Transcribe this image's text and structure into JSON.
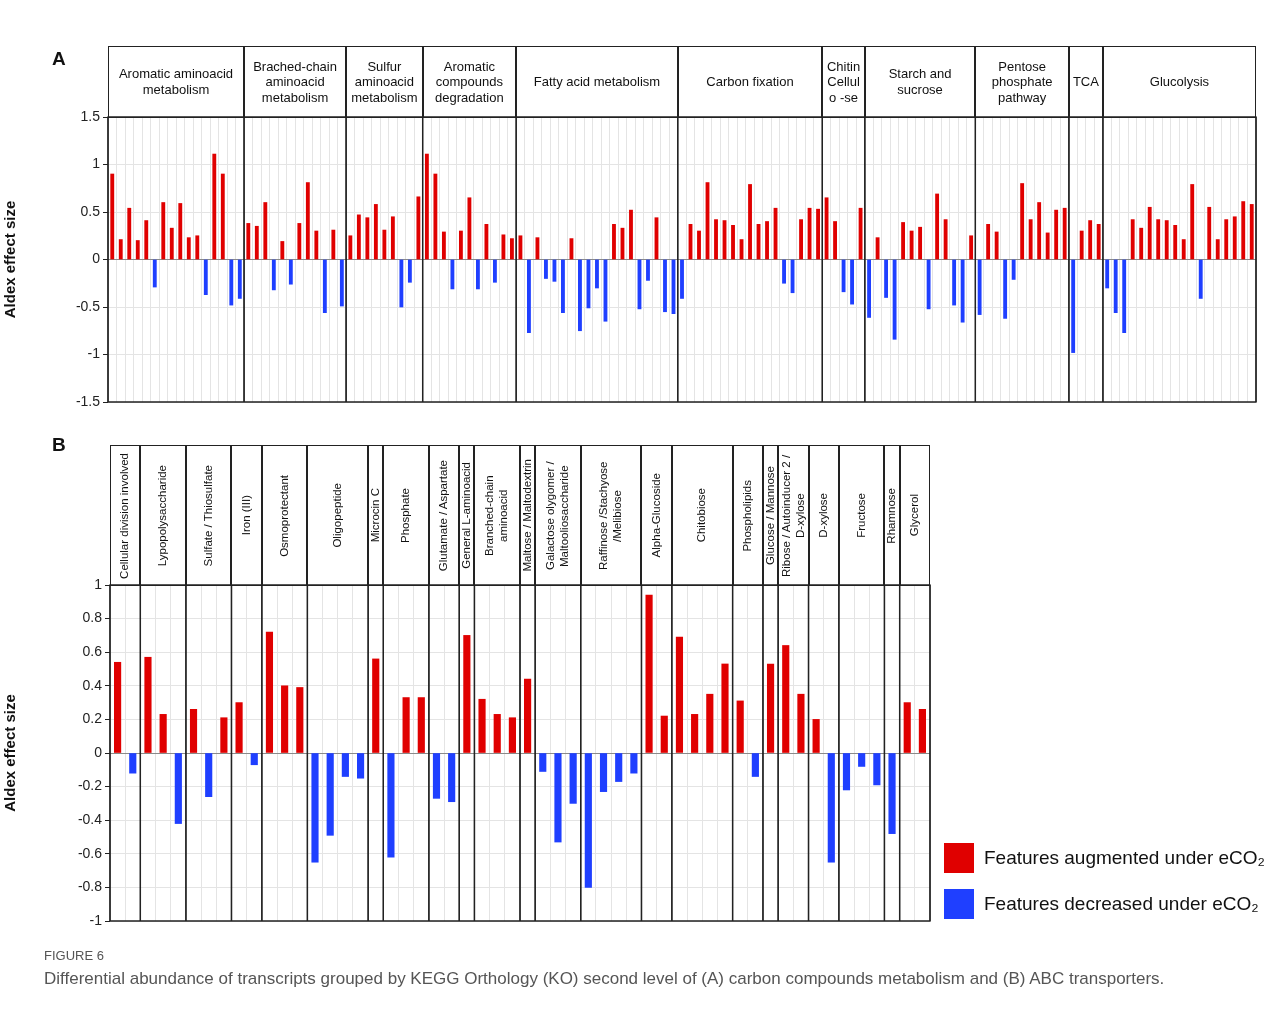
{
  "chart_data": [
    {
      "type": "bar",
      "ylabel": "Aldex effect size",
      "annotations": [
        "A",
        "Aromatic aminoacid metabolism",
        "Brached-chain aminoacid metabolism",
        "Sulfur aminoacid metabolism",
        "Aromatic compounds degradation",
        "Fatty acid metabolism",
        "Carbon fixation",
        "Chitin Cellulo -se",
        "Starch and sucrose",
        "Pentose phosphate pathway",
        "TCA",
        "Glucolysis"
      ],
      "categories": [
        null,
        null,
        null,
        null,
        null,
        null,
        null,
        null,
        null,
        null,
        null,
        null,
        null,
        null,
        null,
        null,
        null,
        null,
        null,
        null,
        null,
        null,
        null,
        null,
        null,
        null,
        null,
        null,
        null,
        null,
        null,
        null,
        null,
        null,
        null,
        null,
        null,
        null,
        null,
        null,
        null,
        null,
        null,
        null,
        null,
        null,
        null,
        null,
        null,
        null,
        null,
        null,
        null,
        null,
        null,
        null,
        null,
        null,
        null,
        null,
        null,
        null,
        null,
        null,
        null,
        null,
        null,
        null,
        null,
        null,
        null,
        null,
        null,
        null,
        null,
        null,
        null,
        null,
        null,
        null,
        null,
        null,
        null,
        null,
        null,
        null,
        null,
        null,
        null,
        null,
        null,
        null,
        null,
        null,
        null,
        null,
        null,
        null,
        null,
        null,
        null,
        null,
        null,
        null,
        null,
        null,
        null,
        null,
        null,
        null,
        null,
        null,
        null,
        null,
        null,
        null,
        null,
        null,
        null,
        null,
        null,
        null,
        null,
        null,
        null,
        null,
        null,
        null,
        null,
        null,
        null,
        null,
        null,
        null,
        null
      ],
      "values": [
        0.9,
        0.21,
        0.54,
        0.2,
        0.41,
        -0.29,
        0.6,
        0.33,
        0.59,
        0.23,
        0.25,
        -0.37,
        1.11,
        0.9,
        -0.48,
        -0.41,
        0.38,
        0.35,
        0.6,
        -0.32,
        0.19,
        -0.26,
        0.38,
        0.81,
        0.3,
        -0.56,
        0.31,
        -0.49,
        0.25,
        0.47,
        0.44,
        0.58,
        0.31,
        0.45,
        -0.5,
        -0.24,
        0.66,
        1.11,
        0.9,
        0.29,
        -0.31,
        0.3,
        0.65,
        -0.31,
        0.37,
        -0.24,
        0.26,
        0.22,
        0.25,
        -0.77,
        0.23,
        -0.2,
        -0.23,
        -0.56,
        0.22,
        -0.75,
        -0.51,
        -0.3,
        -0.65,
        0.37,
        0.33,
        0.52,
        -0.52,
        -0.22,
        0.44,
        -0.55,
        -0.57,
        -0.41,
        0.37,
        0.3,
        0.81,
        0.42,
        0.41,
        0.36,
        0.21,
        0.79,
        0.37,
        0.4,
        0.54,
        -0.25,
        -0.35,
        0.42,
        0.54,
        0.53,
        0.65,
        0.4,
        -0.34,
        -0.47,
        0.54,
        -0.61,
        0.23,
        -0.4,
        -0.84,
        0.39,
        0.3,
        0.34,
        -0.52,
        0.69,
        0.42,
        -0.48,
        -0.66,
        0.25,
        -0.58,
        0.37,
        0.29,
        -0.62,
        -0.21,
        0.8,
        0.42,
        0.6,
        0.28,
        0.52,
        0.54,
        -0.98,
        0.3,
        0.41,
        0.37,
        -0.3,
        -0.56,
        -0.77,
        0.42,
        0.33,
        0.55,
        0.42,
        0.41,
        0.36,
        0.21,
        0.79,
        -0.41,
        0.55,
        0.21,
        0.42,
        0.45,
        0.61,
        0.58
      ],
      "colors": [
        "#e00000",
        "#e00000",
        "#e00000",
        "#e00000",
        "#e00000",
        "#1f3fff",
        "#e00000",
        "#e00000",
        "#e00000",
        "#e00000",
        "#e00000",
        "#1f3fff",
        "#e00000",
        "#e00000",
        "#1f3fff",
        "#1f3fff",
        "#e00000",
        "#e00000",
        "#e00000",
        "#1f3fff",
        "#e00000",
        "#1f3fff",
        "#e00000",
        "#e00000",
        "#e00000",
        "#1f3fff",
        "#e00000",
        "#1f3fff",
        "#e00000",
        "#e00000",
        "#e00000",
        "#e00000",
        "#e00000",
        "#e00000",
        "#1f3fff",
        "#1f3fff",
        "#e00000",
        "#e00000",
        "#e00000",
        "#e00000",
        "#1f3fff",
        "#e00000",
        "#e00000",
        "#1f3fff",
        "#e00000",
        "#1f3fff",
        "#e00000",
        "#e00000",
        "#e00000",
        "#1f3fff",
        "#e00000",
        "#1f3fff",
        "#1f3fff",
        "#1f3fff",
        "#e00000",
        "#1f3fff",
        "#1f3fff",
        "#1f3fff",
        "#1f3fff",
        "#e00000",
        "#e00000",
        "#e00000",
        "#1f3fff",
        "#1f3fff",
        "#e00000",
        "#1f3fff",
        "#1f3fff",
        "#1f3fff",
        "#e00000",
        "#e00000",
        "#e00000",
        "#e00000",
        "#e00000",
        "#e00000",
        "#e00000",
        "#e00000",
        "#e00000",
        "#e00000",
        "#e00000",
        "#1f3fff",
        "#1f3fff",
        "#e00000",
        "#e00000",
        "#e00000",
        "#e00000",
        "#e00000",
        "#1f3fff",
        "#1f3fff",
        "#e00000",
        "#1f3fff",
        "#e00000",
        "#1f3fff",
        "#1f3fff",
        "#e00000",
        "#e00000",
        "#e00000",
        "#1f3fff",
        "#e00000",
        "#e00000",
        "#1f3fff",
        "#1f3fff",
        "#e00000",
        "#1f3fff",
        "#e00000",
        "#e00000",
        "#1f3fff",
        "#1f3fff",
        "#e00000",
        "#e00000",
        "#e00000",
        "#e00000",
        "#e00000",
        "#e00000",
        "#1f3fff",
        "#e00000",
        "#e00000",
        "#e00000",
        "#1f3fff",
        "#1f3fff",
        "#1f3fff",
        "#e00000",
        "#e00000",
        "#e00000",
        "#e00000",
        "#e00000",
        "#e00000",
        "#e00000",
        "#e00000",
        "#1f3fff",
        "#e00000",
        "#e00000",
        "#e00000",
        "#e00000",
        "#e00000",
        "#e00000"
      ],
      "ylim": [
        -1.5,
        1.5
      ],
      "yticks": [
        -1.5,
        -1,
        -0.5,
        0,
        0.5,
        1,
        1.5
      ],
      "grid": true,
      "tick_labels": "y"
    },
    {
      "type": "bar",
      "ylabel": "Aldex effect size",
      "annotations": [
        "B",
        "Cellular division involved",
        "Lypopolysaccharide",
        "Sulfate / Thiosulfate",
        "Iron (III)",
        "Osmoprotectant",
        "Oligopeptide",
        "Microcin C",
        "Phosphate",
        "Glutamate / Aspartate",
        "General L-aminoacid",
        "Branched-chain aminoacid",
        "Maltose / Maltodextrin",
        "Galactose olygomer / Maltooliosaccharide",
        "Raffinose /Stachyose /Melibiose",
        "Alpha-Glucoside",
        "Chitobiose",
        "Phospholipids",
        "Glucose / Mannose",
        "Ribose / Autoinducer 2 / D-xylose",
        "D-xylose",
        "Fructose",
        "Rhamnose",
        "Glycerol",
        "FIGURE 6",
        "Differential abundance of transcripts grouped by KEGG Orthology (KO) second level of (A) carbon compounds metabolism and (B) ABC transporters."
      ],
      "categories": [
        null,
        null,
        null,
        null,
        null,
        null,
        null,
        null,
        null,
        null,
        null,
        null,
        null,
        null,
        null,
        null,
        null,
        null,
        null,
        null,
        null,
        null,
        null,
        null,
        null,
        null,
        null,
        null,
        null,
        null,
        null,
        null,
        null,
        null,
        null,
        null,
        null,
        null,
        null,
        null,
        null,
        null,
        null,
        null,
        null,
        null,
        null,
        null,
        null,
        null,
        null,
        null,
        null,
        null
      ],
      "series": [
        {
          "name": "Features augmented under eCO₂",
          "color": "#e00000",
          "values": [
            0.54,
            null,
            0.57,
            0.23,
            null,
            0.26,
            null,
            0.21,
            0.3,
            null,
            0.72,
            0.4,
            0.39,
            null,
            null,
            null,
            null,
            0.56,
            null,
            0.33,
            0.33,
            null,
            null,
            0.7,
            0.32,
            0.23,
            0.21,
            0.44,
            null,
            null,
            null,
            null,
            null,
            null,
            null,
            0.94,
            0.22,
            0.69,
            0.23,
            0.35,
            0.53,
            0.31,
            null,
            0.53,
            0.64,
            0.35,
            0.2,
            null,
            null,
            null,
            null,
            null,
            0.3,
            0.26
          ]
        },
        {
          "name": "Features decreased under eCO₂",
          "color": "#1f3fff",
          "values": [
            null,
            -0.12,
            null,
            null,
            -0.42,
            null,
            -0.26,
            null,
            null,
            -0.07,
            null,
            null,
            null,
            -0.65,
            -0.49,
            -0.14,
            -0.15,
            null,
            -0.62,
            null,
            null,
            -0.27,
            -0.29,
            null,
            null,
            null,
            null,
            null,
            -0.11,
            -0.53,
            -0.3,
            -0.8,
            -0.23,
            -0.17,
            -0.12,
            null,
            null,
            null,
            null,
            null,
            null,
            null,
            -0.14,
            null,
            null,
            null,
            null,
            -0.65,
            -0.22,
            -0.08,
            -0.19,
            -0.48,
            null,
            null
          ]
        }
      ],
      "legend": "bottom right",
      "ylim": [
        -1,
        1
      ],
      "yticks": [
        -1,
        -0.8,
        -0.6,
        -0.4,
        -0.2,
        0,
        0.2,
        0.4,
        0.6,
        0.8,
        1
      ],
      "grid": true,
      "tick_labels": "y"
    }
  ]
}
